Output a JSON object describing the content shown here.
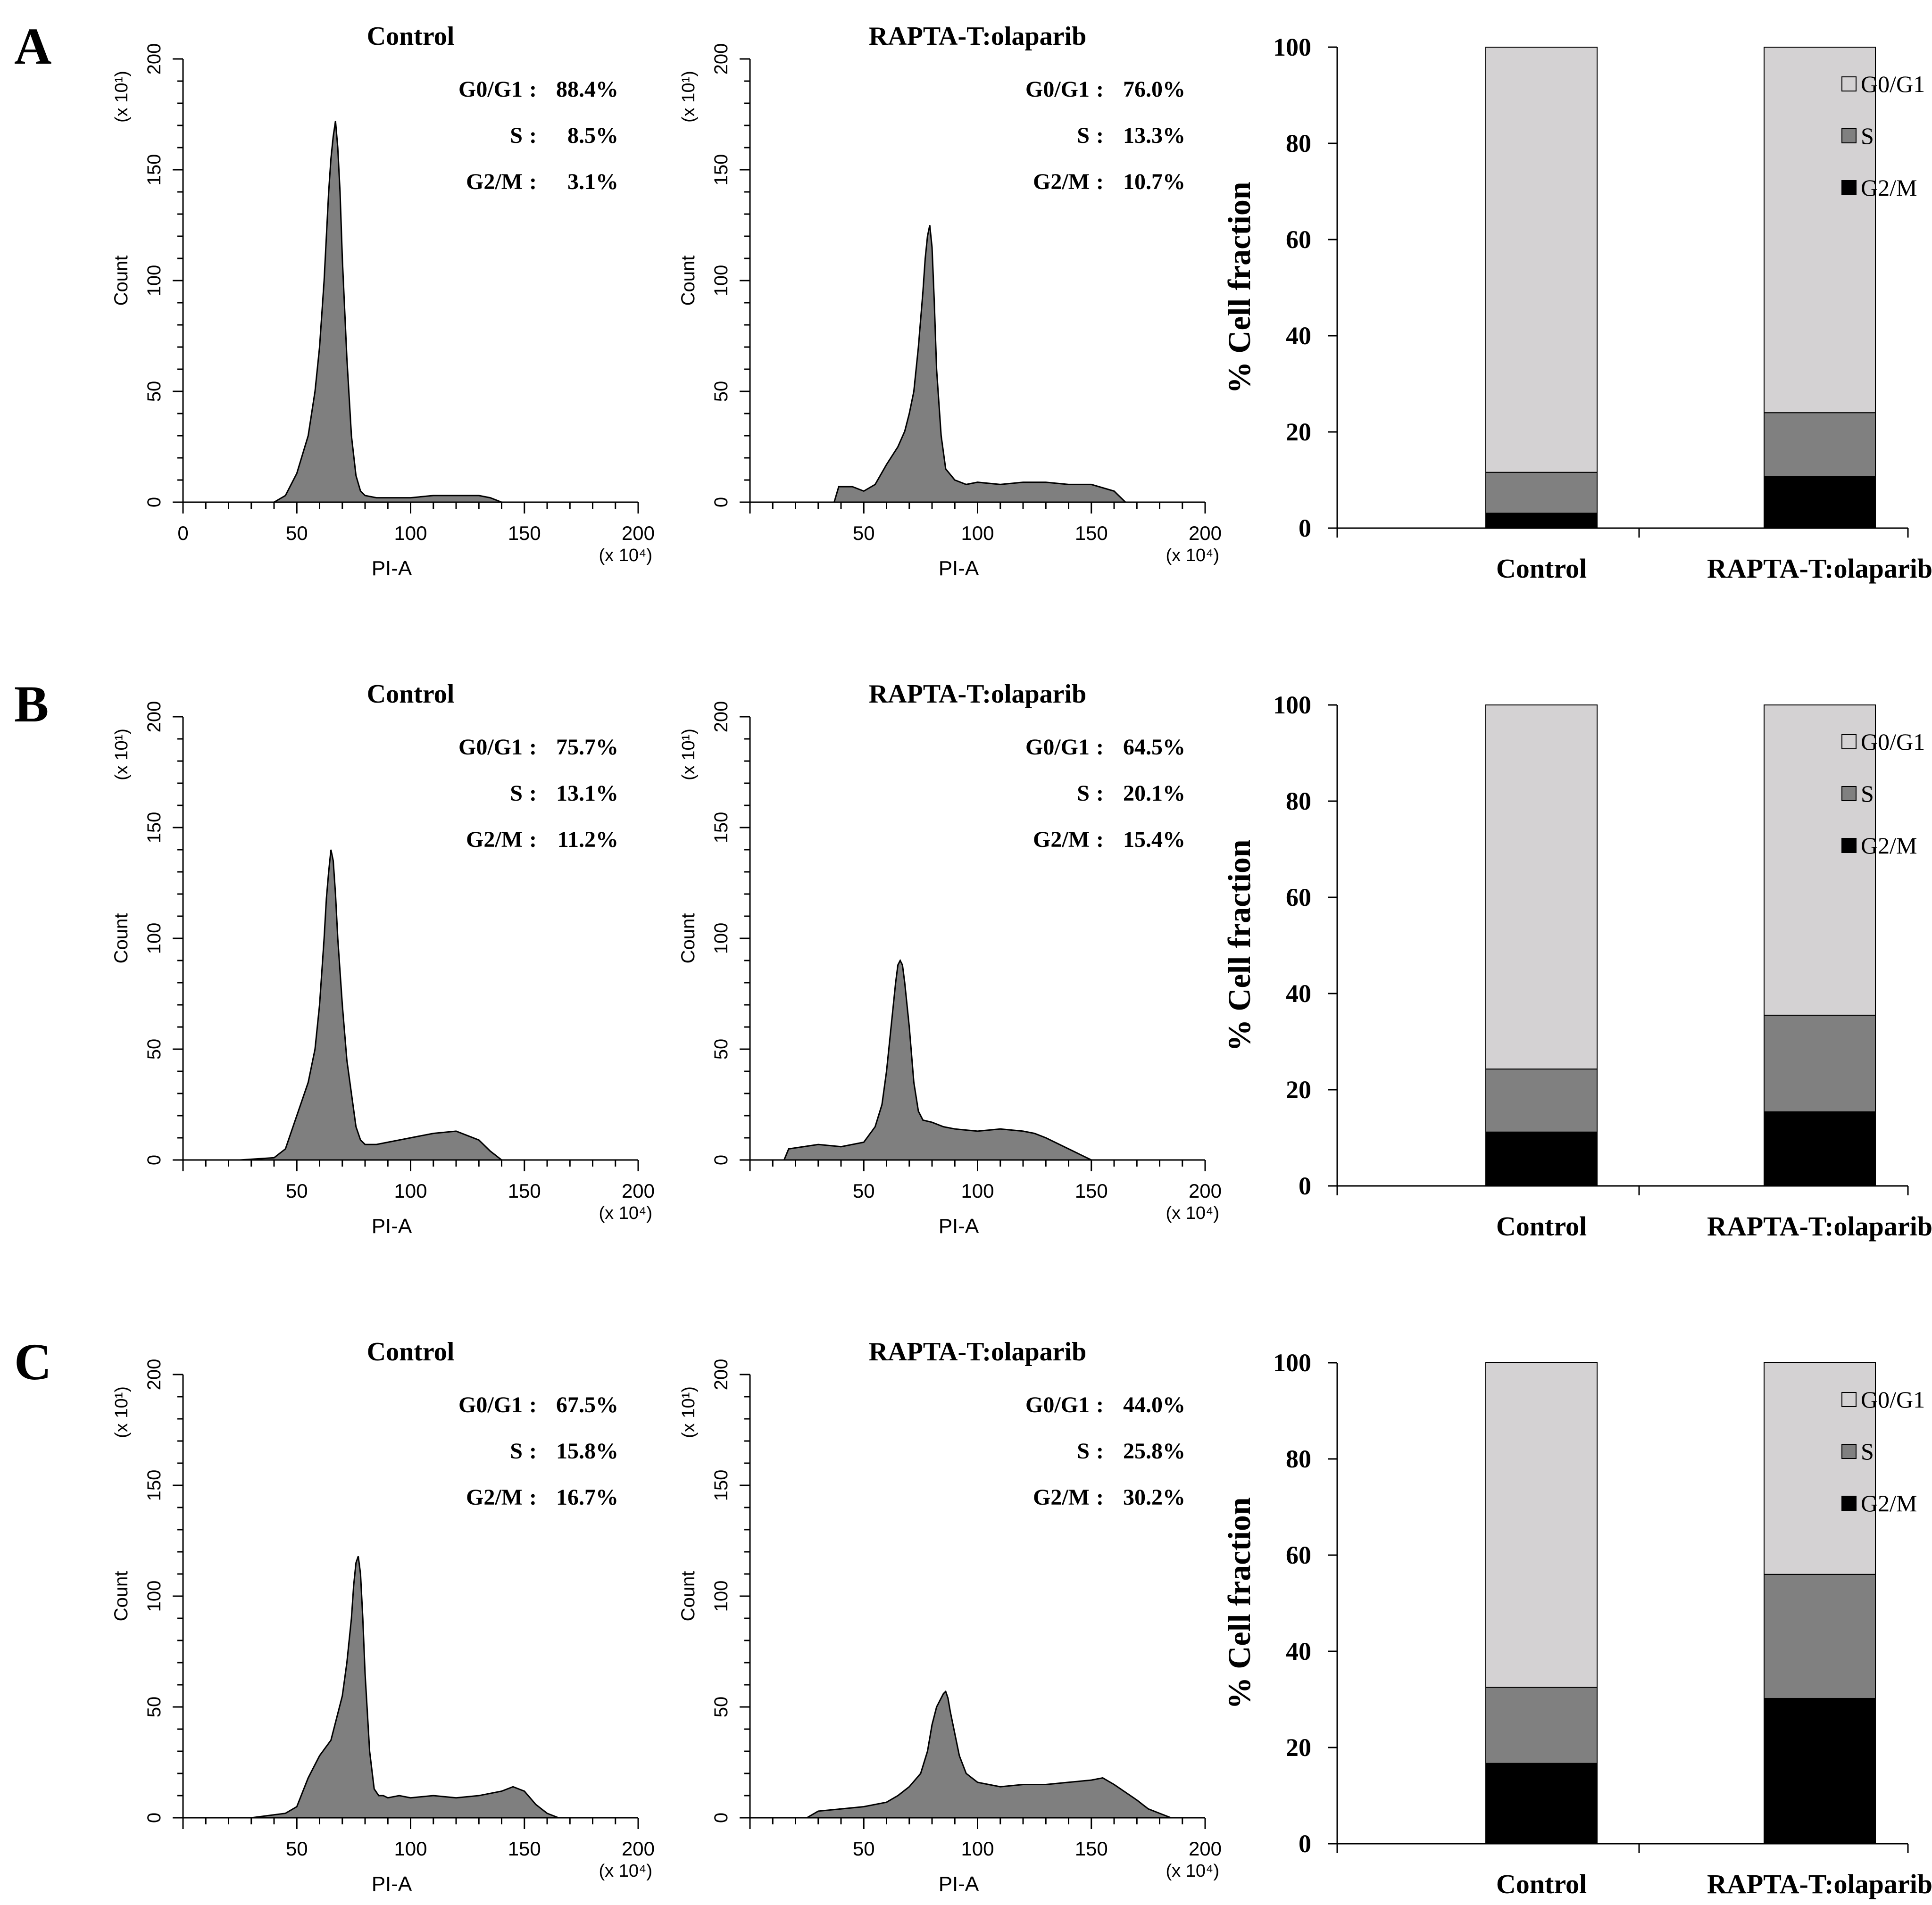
{
  "figure": {
    "hist_common": {
      "x_axis_label": "PI-A",
      "y_axis_label": "Count",
      "x_multiplier": "(x 10⁴)",
      "y_multiplier": "(x 10¹)",
      "x_range": [
        0,
        200
      ],
      "y_range": [
        0,
        200
      ],
      "y_ticks": [
        0,
        50,
        100,
        150,
        200
      ],
      "fill_color": "#7f7f7f",
      "stroke_color": "#000000"
    },
    "bar_common": {
      "ylabel": "% Cell fraction",
      "ylim": [
        0,
        100
      ],
      "y_ticks": [
        0,
        20,
        40,
        60,
        80,
        100
      ],
      "categories": [
        "Control",
        "RAPTA-T:olaparib"
      ],
      "legend": [
        {
          "name": "G0/G1",
          "color": "#d4d2d3"
        },
        {
          "name": "S",
          "color": "#808080"
        },
        {
          "name": "G2/M",
          "color": "#000000"
        }
      ]
    }
  },
  "panels": [
    {
      "label": "A",
      "histograms": [
        {
          "title": "Control",
          "x_ticks": [
            0,
            50,
            100,
            150,
            200
          ],
          "stats": [
            {
              "phase": "G0/G1",
              "value": "88.4%"
            },
            {
              "phase": "S",
              "value": "8.5%"
            },
            {
              "phase": "G2/M",
              "value": "3.1%"
            }
          ]
        },
        {
          "title": "RAPTA-T:olaparib",
          "x_ticks": [
            50,
            100,
            150,
            200
          ],
          "stats": [
            {
              "phase": "G0/G1",
              "value": "76.0%"
            },
            {
              "phase": "S",
              "value": "13.3%"
            },
            {
              "phase": "G2/M",
              "value": "10.7%"
            }
          ]
        }
      ]
    },
    {
      "label": "B",
      "histograms": [
        {
          "title": "Control",
          "x_ticks": [
            50,
            100,
            150,
            200
          ],
          "stats": [
            {
              "phase": "G0/G1",
              "value": "75.7%"
            },
            {
              "phase": "S",
              "value": "13.1%"
            },
            {
              "phase": "G2/M",
              "value": "11.2%"
            }
          ]
        },
        {
          "title": "RAPTA-T:olaparib",
          "x_ticks": [
            50,
            100,
            150,
            200
          ],
          "stats": [
            {
              "phase": "G0/G1",
              "value": "64.5%"
            },
            {
              "phase": "S",
              "value": "20.1%"
            },
            {
              "phase": "G2/M",
              "value": "15.4%"
            }
          ]
        }
      ]
    },
    {
      "label": "C",
      "histograms": [
        {
          "title": "Control",
          "x_ticks": [
            50,
            100,
            150,
            200
          ],
          "stats": [
            {
              "phase": "G0/G1",
              "value": "67.5%"
            },
            {
              "phase": "S",
              "value": "15.8%"
            },
            {
              "phase": "G2/M",
              "value": "16.7%"
            }
          ]
        },
        {
          "title": "RAPTA-T:olaparib",
          "x_ticks": [
            50,
            100,
            150,
            200
          ],
          "stats": [
            {
              "phase": "G0/G1",
              "value": "44.0%"
            },
            {
              "phase": "S",
              "value": "25.8%"
            },
            {
              "phase": "G2/M",
              "value": "30.2%"
            }
          ]
        }
      ]
    }
  ],
  "chart_data": [
    {
      "type": "area",
      "panel": "A",
      "title": "Control",
      "xlabel": "PI-A",
      "ylabel": "Count",
      "xlim": [
        0,
        200
      ],
      "ylim": [
        0,
        200
      ],
      "x": [
        40,
        45,
        50,
        55,
        58,
        60,
        62,
        64,
        65,
        66,
        67,
        68,
        69,
        70,
        72,
        74,
        76,
        78,
        80,
        85,
        90,
        100,
        110,
        120,
        130,
        135,
        140
      ],
      "y": [
        0,
        3,
        13,
        30,
        50,
        70,
        100,
        140,
        155,
        165,
        172,
        160,
        140,
        110,
        65,
        30,
        12,
        5,
        3,
        2,
        2,
        2,
        3,
        3,
        3,
        2,
        0
      ]
    },
    {
      "type": "area",
      "panel": "A",
      "title": "RAPTA-T:olaparib",
      "xlabel": "PI-A",
      "ylabel": "Count",
      "xlim": [
        0,
        200
      ],
      "ylim": [
        0,
        200
      ],
      "x": [
        37,
        39,
        45,
        50,
        55,
        60,
        65,
        68,
        70,
        72,
        74,
        76,
        77,
        78,
        79,
        80,
        81,
        82,
        84,
        86,
        90,
        95,
        100,
        110,
        120,
        130,
        140,
        150,
        160,
        165
      ],
      "y": [
        0,
        7,
        7,
        5,
        8,
        17,
        25,
        32,
        40,
        50,
        70,
        95,
        110,
        120,
        125,
        115,
        90,
        60,
        30,
        15,
        10,
        8,
        9,
        8,
        9,
        9,
        8,
        8,
        5,
        0
      ]
    },
    {
      "type": "area",
      "panel": "B",
      "title": "Control",
      "xlabel": "PI-A",
      "ylabel": "Count",
      "xlim": [
        0,
        200
      ],
      "ylim": [
        0,
        200
      ],
      "x": [
        25,
        40,
        45,
        50,
        55,
        58,
        60,
        62,
        63,
        64,
        65,
        66,
        67,
        68,
        70,
        72,
        74,
        76,
        78,
        80,
        85,
        90,
        100,
        110,
        120,
        125,
        130,
        135,
        140
      ],
      "y": [
        0,
        1,
        5,
        20,
        35,
        50,
        70,
        100,
        118,
        130,
        140,
        135,
        120,
        100,
        70,
        45,
        30,
        15,
        9,
        7,
        7,
        8,
        10,
        12,
        13,
        11,
        9,
        4,
        0
      ]
    },
    {
      "type": "area",
      "panel": "B",
      "title": "RAPTA-T:olaparib",
      "xlabel": "PI-A",
      "ylabel": "Count",
      "xlim": [
        0,
        200
      ],
      "ylim": [
        0,
        200
      ],
      "x": [
        15,
        17,
        30,
        40,
        50,
        55,
        58,
        60,
        62,
        64,
        65,
        66,
        67,
        68,
        70,
        72,
        74,
        76,
        80,
        85,
        90,
        100,
        110,
        120,
        125,
        130,
        140,
        150
      ],
      "y": [
        0,
        5,
        7,
        6,
        8,
        15,
        25,
        40,
        60,
        80,
        88,
        90,
        88,
        80,
        60,
        35,
        22,
        18,
        17,
        15,
        14,
        13,
        14,
        13,
        12,
        10,
        5,
        0
      ]
    },
    {
      "type": "area",
      "panel": "C",
      "title": "Control",
      "xlabel": "PI-A",
      "ylabel": "Count",
      "xlim": [
        0,
        200
      ],
      "ylim": [
        0,
        200
      ],
      "x": [
        30,
        45,
        50,
        55,
        60,
        65,
        70,
        72,
        74,
        75,
        76,
        77,
        78,
        79,
        80,
        82,
        84,
        86,
        88,
        90,
        95,
        100,
        110,
        120,
        130,
        140,
        145,
        150,
        155,
        160,
        165
      ],
      "y": [
        0,
        2,
        5,
        18,
        28,
        35,
        55,
        70,
        90,
        105,
        115,
        118,
        110,
        90,
        65,
        30,
        13,
        10,
        10,
        9,
        10,
        9,
        10,
        9,
        10,
        12,
        14,
        12,
        6,
        2,
        0
      ]
    },
    {
      "type": "area",
      "panel": "C",
      "title": "RAPTA-T:olaparib",
      "xlabel": "PI-A",
      "ylabel": "Count",
      "xlim": [
        0,
        200
      ],
      "ylim": [
        0,
        200
      ],
      "x": [
        25,
        30,
        40,
        50,
        60,
        65,
        70,
        75,
        78,
        80,
        82,
        84,
        85,
        86,
        87,
        88,
        90,
        92,
        95,
        100,
        110,
        120,
        130,
        140,
        150,
        155,
        160,
        170,
        175,
        180,
        185
      ],
      "y": [
        0,
        3,
        4,
        5,
        7,
        10,
        14,
        20,
        30,
        42,
        50,
        54,
        56,
        57,
        54,
        48,
        38,
        28,
        20,
        16,
        14,
        15,
        15,
        16,
        17,
        18,
        15,
        8,
        4,
        2,
        0
      ]
    },
    {
      "type": "bar",
      "panel": "A",
      "stacked": true,
      "categories": [
        "Control",
        "RAPTA-T:olaparib"
      ],
      "ylabel": "% Cell fraction",
      "ylim": [
        0,
        100
      ],
      "series": [
        {
          "name": "G2/M",
          "values": [
            3.1,
            10.7
          ]
        },
        {
          "name": "S",
          "values": [
            8.5,
            13.3
          ]
        },
        {
          "name": "G0/G1",
          "values": [
            88.4,
            76.0
          ]
        }
      ]
    },
    {
      "type": "bar",
      "panel": "B",
      "stacked": true,
      "categories": [
        "Control",
        "RAPTA-T:olaparib"
      ],
      "ylabel": "% Cell fraction",
      "ylim": [
        0,
        100
      ],
      "series": [
        {
          "name": "G2/M",
          "values": [
            11.2,
            15.4
          ]
        },
        {
          "name": "S",
          "values": [
            13.1,
            20.1
          ]
        },
        {
          "name": "G0/G1",
          "values": [
            75.7,
            64.5
          ]
        }
      ]
    },
    {
      "type": "bar",
      "panel": "C",
      "stacked": true,
      "categories": [
        "Control",
        "RAPTA-T:olaparib"
      ],
      "ylabel": "% Cell fraction",
      "ylim": [
        0,
        100
      ],
      "series": [
        {
          "name": "G2/M",
          "values": [
            16.7,
            30.2
          ]
        },
        {
          "name": "S",
          "values": [
            15.8,
            25.8
          ]
        },
        {
          "name": "G0/G1",
          "values": [
            67.5,
            44.0
          ]
        }
      ]
    }
  ]
}
